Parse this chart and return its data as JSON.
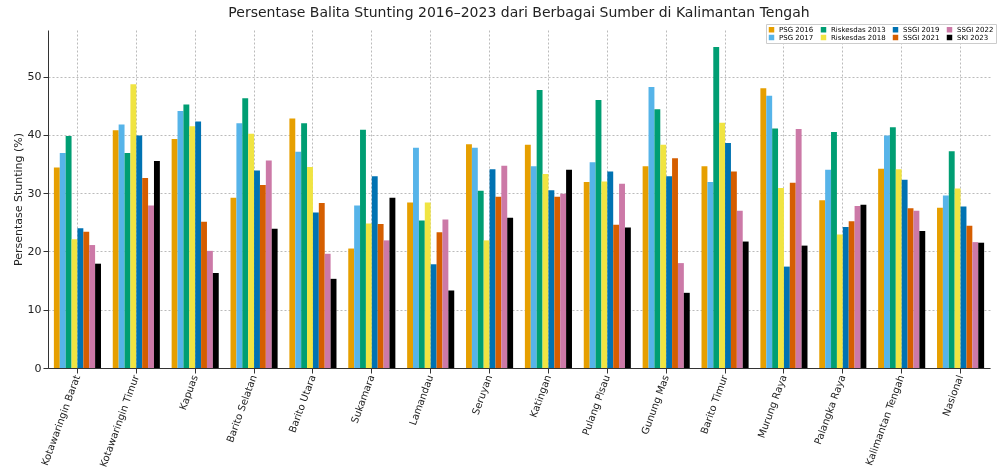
{
  "chart_data": {
    "type": "bar",
    "title": "Persentase Balita Stunting 2016–2023 dari Berbagai Sumber di Kalimantan Tengah",
    "ylabel": "Persentase Stunting (%)",
    "categories": [
      "Kotawaringin Barat",
      "Kotawaringin Timur",
      "Kapuas",
      "Barito Selatan",
      "Barito Utara",
      "Sukamara",
      "Lamandau",
      "Seruyan",
      "Katingan",
      "Pulang Pisau",
      "Gunung Mas",
      "Barito Timur",
      "Murung Raya",
      "Palangka Raya",
      "Kalimantan Tengah",
      "Nasional"
    ],
    "series": [
      {
        "name": "PSG 2016",
        "color": "#e69f00",
        "values": [
          34.4,
          40.8,
          39.3,
          29.2,
          42.8,
          20.5,
          28.4,
          38.4,
          38.3,
          31.9,
          34.6,
          34.6,
          48.0,
          28.8,
          34.2,
          27.5
        ]
      },
      {
        "name": "PSG 2017",
        "color": "#56b4e9",
        "values": [
          36.9,
          41.8,
          44.1,
          42.0,
          37.1,
          27.9,
          37.8,
          37.8,
          34.6,
          35.3,
          48.2,
          31.9,
          46.7,
          34.0,
          39.9,
          29.6
        ]
      },
      {
        "name": "Riskesdas 2013",
        "color": "#009e73",
        "values": [
          39.8,
          36.9,
          45.2,
          46.3,
          42.0,
          40.9,
          25.3,
          30.4,
          47.7,
          46.0,
          44.4,
          55.1,
          41.1,
          40.5,
          41.3,
          37.2
        ]
      },
      {
        "name": "Riskesdas 2018",
        "color": "#f0e442",
        "values": [
          22.1,
          48.7,
          41.5,
          40.2,
          34.5,
          24.8,
          28.4,
          21.9,
          33.3,
          32.0,
          38.3,
          42.1,
          30.9,
          22.9,
          34.1,
          30.8
        ]
      },
      {
        "name": "SSGI 2019",
        "color": "#0072b2",
        "values": [
          24.0,
          39.9,
          42.3,
          33.9,
          26.7,
          32.9,
          17.8,
          34.1,
          30.5,
          33.7,
          32.9,
          38.6,
          17.4,
          24.2,
          32.3,
          27.7
        ]
      },
      {
        "name": "SSGI 2021",
        "color": "#d55e00",
        "values": [
          23.4,
          32.6,
          25.1,
          31.4,
          28.3,
          24.7,
          23.3,
          29.4,
          29.4,
          24.6,
          36.0,
          33.7,
          31.8,
          25.2,
          27.4,
          24.4
        ]
      },
      {
        "name": "SSGI 2022",
        "color": "#cc79a7",
        "values": [
          21.1,
          27.9,
          20.1,
          35.6,
          19.6,
          21.9,
          25.5,
          34.7,
          29.9,
          31.6,
          18.0,
          27.0,
          41.0,
          27.8,
          27.0,
          21.6
        ]
      },
      {
        "name": "SKI 2023",
        "color": "#000000",
        "values": [
          17.9,
          35.5,
          16.3,
          23.9,
          15.3,
          29.2,
          13.3,
          25.8,
          34.0,
          24.1,
          12.9,
          21.7,
          21.0,
          28.0,
          23.5,
          21.5
        ]
      }
    ],
    "ylim": [
      0,
      58
    ],
    "yticks": [
      0,
      10,
      20,
      30,
      40,
      50
    ],
    "grid": true,
    "legend": "top right"
  }
}
